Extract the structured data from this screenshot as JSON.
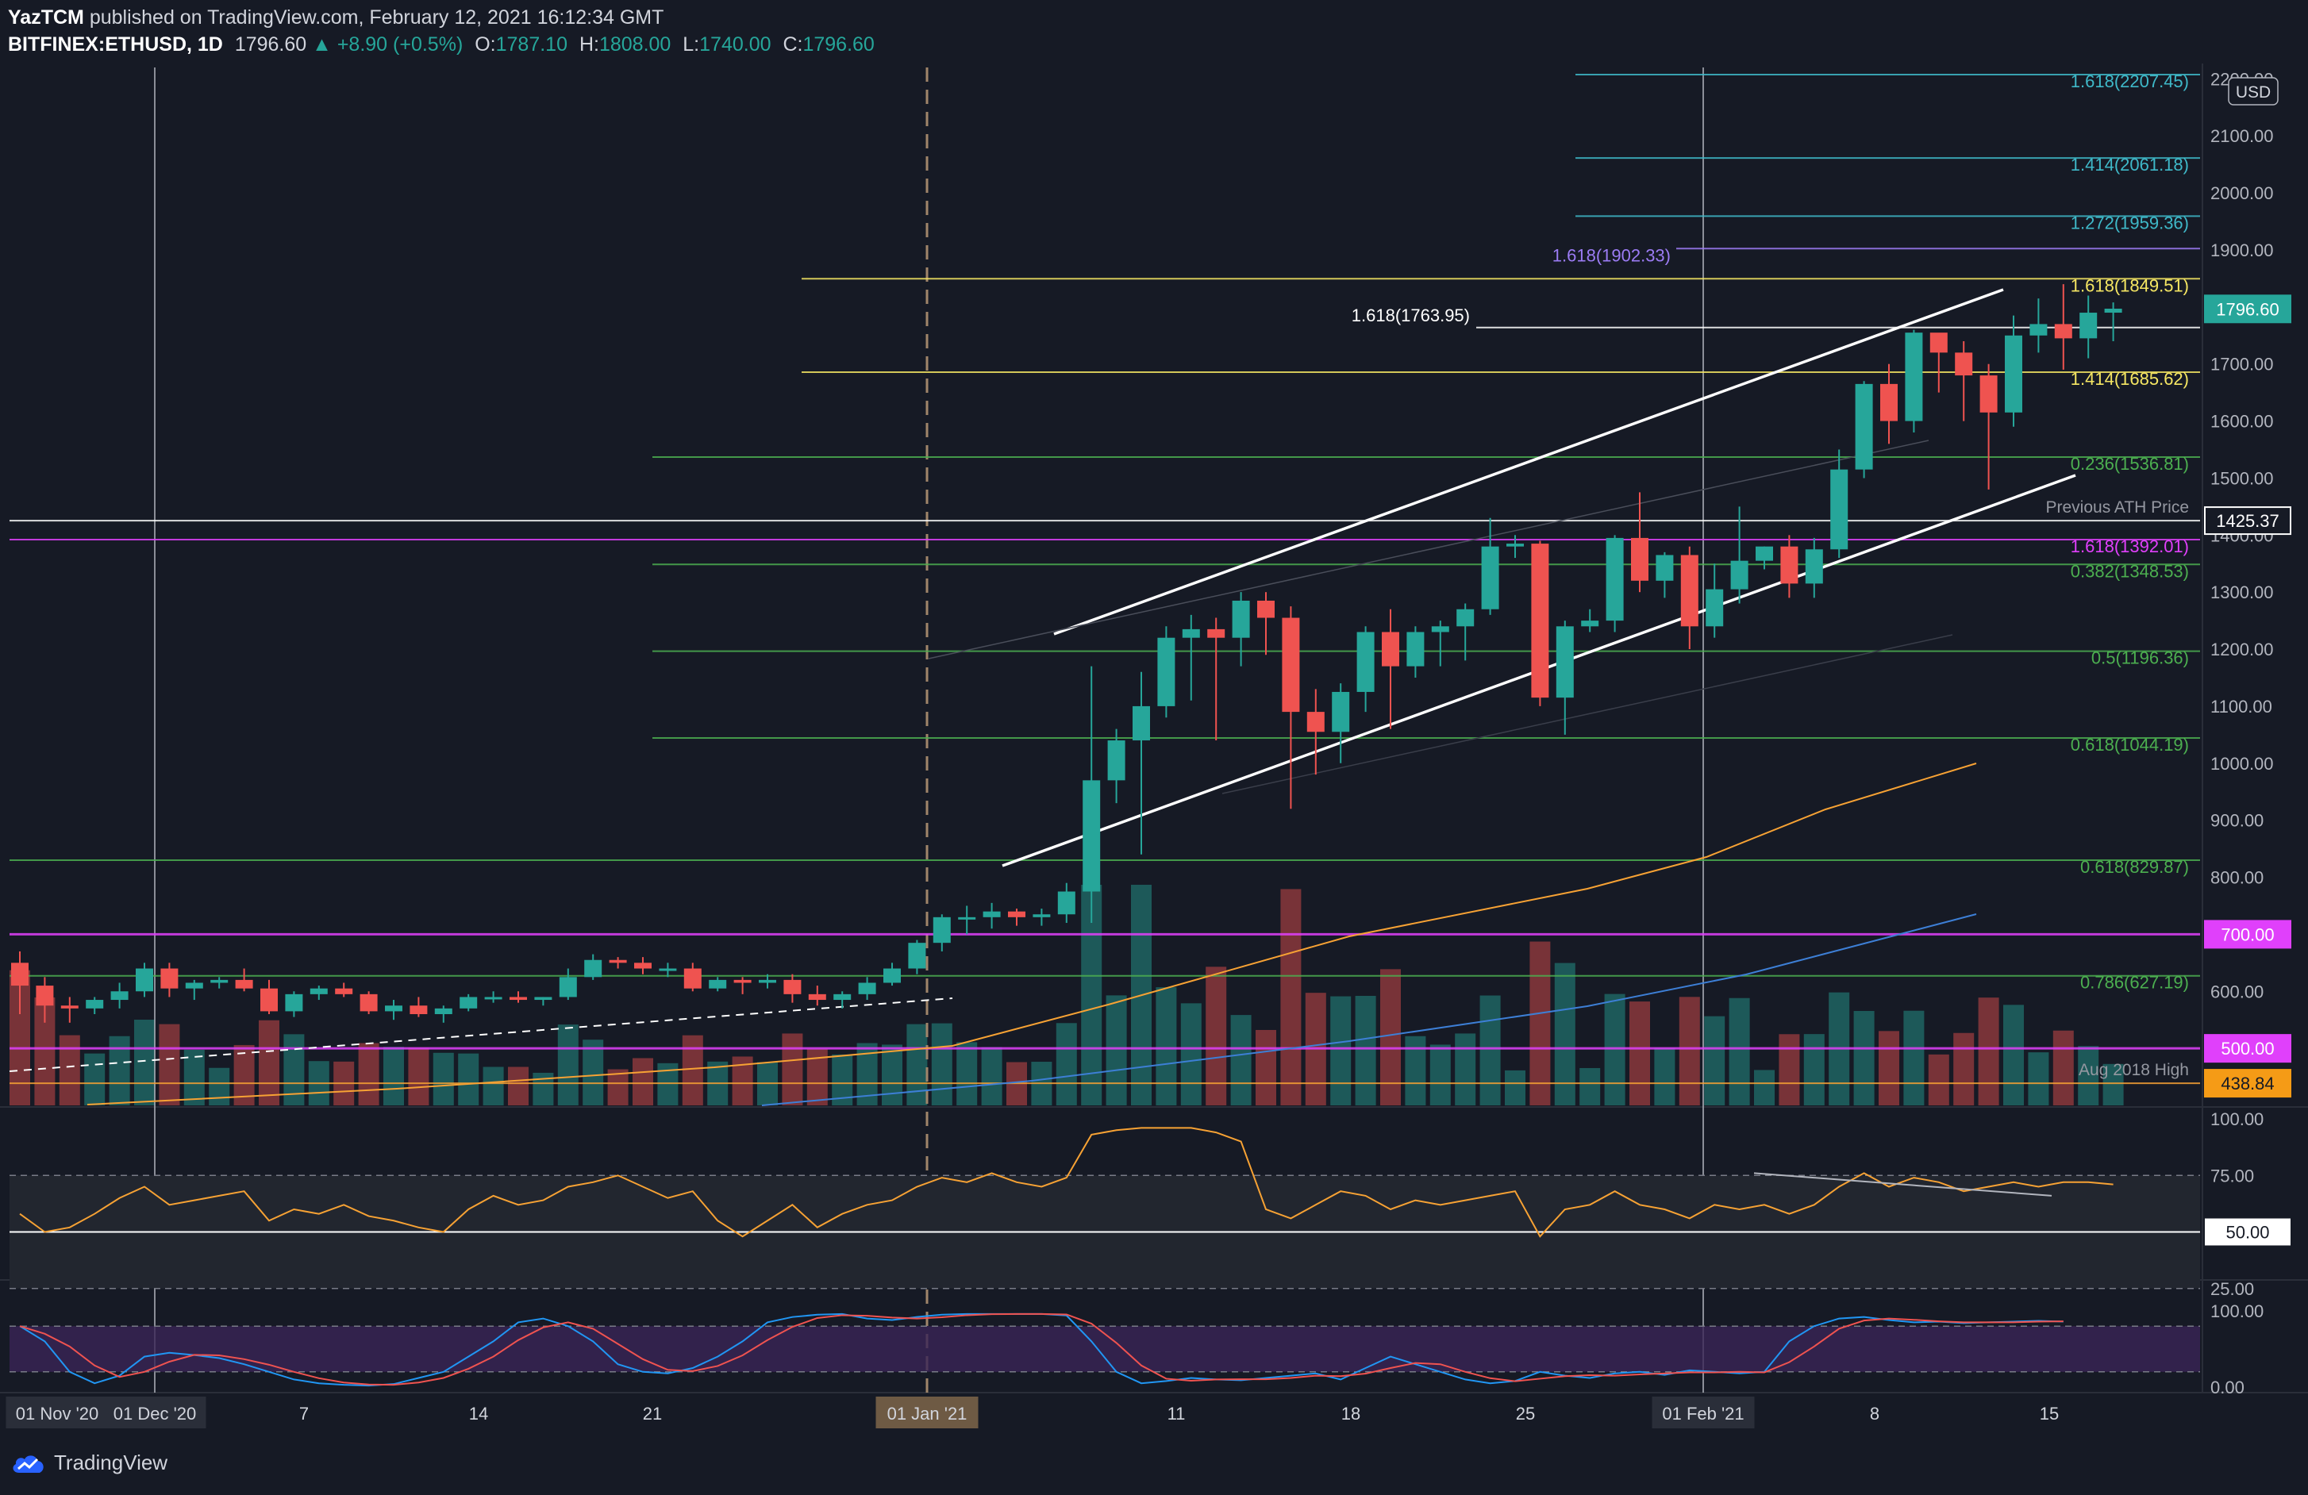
{
  "header": {
    "author": "YazTCM",
    "published": "published on TradingView.com, February 12, 2021 16:12:34 GMT",
    "symbol": "BITFINEX:ETHUSD, 1D",
    "last": "1796.60",
    "change": "▲ +8.90 (+0.5%)",
    "open_label": "O:",
    "open": "1787.10",
    "high_label": "H:",
    "high": "1808.00",
    "low_label": "L:",
    "low": "1740.00",
    "close_label": "C:",
    "close": "1796.60"
  },
  "footer": {
    "brand": "TradingView"
  },
  "colors": {
    "background": "#161a25",
    "up": "#26a69a",
    "down": "#ef5350",
    "fib_green": "#4caf50",
    "fib_yellow": "#f5e663",
    "fib_cyan": "#3fb9c9",
    "fib_purple": "#9c7cf5",
    "magenta": "#e040fb",
    "ma_orange": "#f7a234",
    "ma_blue": "#3d7fd6",
    "rsi": "#f7a234",
    "stoch_k": "#2196f3",
    "stoch_d": "#ef5350"
  },
  "chart_data": {
    "type": "candlestick",
    "currency_badge": "USD",
    "y_ticks": [
      "2200.00",
      "2100.00",
      "2000.00",
      "1900.00",
      "1800.00",
      "1700.00",
      "1600.00",
      "1500.00",
      "1400.00",
      "1300.00",
      "1200.00",
      "1100.00",
      "1000.00",
      "900.00",
      "800.00",
      "700.00",
      "600.00",
      "500.00"
    ],
    "y_range": [
      400,
      2220
    ],
    "x_labels": [
      "01 Nov '20",
      "01 Dec '20",
      "7",
      "14",
      "21",
      "01 Jan '21",
      "11",
      "18",
      "25",
      "01 Feb '21",
      "8",
      "15"
    ],
    "price_badges": [
      {
        "text": "1796.60",
        "price": 1796.6,
        "color": "#26a69a",
        "text_color": "#ffffff"
      },
      {
        "text": "1425.37",
        "price": 1425.37,
        "color": "#161a25",
        "text_color": "#ffffff",
        "border": "#ffffff"
      },
      {
        "text": "700.00",
        "price": 700,
        "color": "#e040fb",
        "text_color": "#ffffff"
      },
      {
        "text": "500.00",
        "price": 500,
        "color": "#e040fb",
        "text_color": "#ffffff"
      },
      {
        "text": "438.84",
        "price": 438.84,
        "color": "#f59b16",
        "text_color": "#161a25"
      }
    ],
    "levels": [
      {
        "label": "1.618(2207.45)",
        "price": 2207.45,
        "color": "#3fb9c9"
      },
      {
        "label": "1.414(2061.18)",
        "price": 2061.18,
        "color": "#3fb9c9"
      },
      {
        "label": "1.272(1959.36)",
        "price": 1959.36,
        "color": "#3fb9c9"
      },
      {
        "label": "1.618(1902.33)",
        "price": 1902.33,
        "color": "#9c7cf5"
      },
      {
        "label": "1.618(1849.51)",
        "price": 1849.51,
        "color": "#f5e663"
      },
      {
        "label": "1.618(1763.95)",
        "price": 1763.95,
        "color": "#ffffff"
      },
      {
        "label": "1.414(1685.62)",
        "price": 1685.62,
        "color": "#f5e663"
      },
      {
        "label": "0.236(1536.81)",
        "price": 1536.81,
        "color": "#4caf50"
      },
      {
        "label": "Previous ATH Price",
        "price": 1425.37,
        "color": "#ffffff"
      },
      {
        "label": "1.618(1392.01)",
        "price": 1392.01,
        "color": "#e040fb"
      },
      {
        "label": "0.382(1348.53)",
        "price": 1348.53,
        "color": "#4caf50"
      },
      {
        "label": "0.5(1196.36)",
        "price": 1196.36,
        "color": "#4caf50"
      },
      {
        "label": "0.618(1044.19)",
        "price": 1044.19,
        "color": "#4caf50"
      },
      {
        "label": "0.618(829.87)",
        "price": 829.87,
        "color": "#4caf50"
      },
      {
        "label": "700.00",
        "price": 700,
        "color": "#e040fb"
      },
      {
        "label": "0.786(627.19)",
        "price": 627.19,
        "color": "#4caf50"
      },
      {
        "label": "500.00",
        "price": 500,
        "color": "#e040fb"
      },
      {
        "label": "Aug 2018 High",
        "price": 438.84,
        "color": "#f7a234"
      }
    ],
    "candles": [
      [
        650,
        670,
        560,
        610
      ],
      [
        610,
        625,
        545,
        575
      ],
      [
        575,
        590,
        545,
        570
      ],
      [
        570,
        590,
        560,
        585
      ],
      [
        585,
        615,
        570,
        600
      ],
      [
        600,
        650,
        590,
        640
      ],
      [
        640,
        650,
        590,
        605
      ],
      [
        605,
        620,
        585,
        615
      ],
      [
        615,
        625,
        605,
        620
      ],
      [
        620,
        640,
        600,
        605
      ],
      [
        605,
        620,
        560,
        565
      ],
      [
        565,
        600,
        555,
        595
      ],
      [
        595,
        610,
        585,
        605
      ],
      [
        605,
        615,
        590,
        595
      ],
      [
        595,
        600,
        560,
        565
      ],
      [
        565,
        585,
        550,
        575
      ],
      [
        575,
        590,
        555,
        560
      ],
      [
        560,
        575,
        545,
        570
      ],
      [
        570,
        595,
        565,
        590
      ],
      [
        590,
        600,
        580,
        590
      ],
      [
        590,
        600,
        580,
        585
      ],
      [
        585,
        590,
        575,
        590
      ],
      [
        590,
        640,
        585,
        625
      ],
      [
        625,
        665,
        620,
        655
      ],
      [
        655,
        660,
        640,
        650
      ],
      [
        650,
        660,
        630,
        640
      ],
      [
        640,
        650,
        625,
        640
      ],
      [
        640,
        650,
        600,
        605
      ],
      [
        605,
        625,
        600,
        620
      ],
      [
        620,
        625,
        595,
        615
      ],
      [
        615,
        630,
        605,
        620
      ],
      [
        620,
        630,
        580,
        595
      ],
      [
        595,
        610,
        575,
        585
      ],
      [
        585,
        600,
        570,
        595
      ],
      [
        595,
        625,
        585,
        615
      ],
      [
        615,
        650,
        610,
        640
      ],
      [
        640,
        690,
        630,
        685
      ],
      [
        685,
        735,
        670,
        730
      ],
      [
        730,
        750,
        700,
        730
      ],
      [
        730,
        755,
        710,
        740
      ],
      [
        740,
        745,
        715,
        730
      ],
      [
        730,
        745,
        715,
        735
      ],
      [
        735,
        790,
        720,
        775
      ],
      [
        775,
        1170,
        720,
        970
      ],
      [
        970,
        1060,
        930,
        1040
      ],
      [
        1040,
        1160,
        840,
        1100
      ],
      [
        1100,
        1240,
        1080,
        1220
      ],
      [
        1220,
        1260,
        1110,
        1235
      ],
      [
        1235,
        1255,
        1040,
        1220
      ],
      [
        1220,
        1300,
        1170,
        1285
      ],
      [
        1285,
        1300,
        1190,
        1255
      ],
      [
        1255,
        1275,
        920,
        1090
      ],
      [
        1090,
        1130,
        980,
        1055
      ],
      [
        1055,
        1140,
        1000,
        1125
      ],
      [
        1125,
        1240,
        1090,
        1230
      ],
      [
        1230,
        1270,
        1060,
        1170
      ],
      [
        1170,
        1240,
        1150,
        1230
      ],
      [
        1230,
        1250,
        1170,
        1240
      ],
      [
        1240,
        1280,
        1180,
        1270
      ],
      [
        1270,
        1430,
        1260,
        1380
      ],
      [
        1380,
        1400,
        1360,
        1385
      ],
      [
        1385,
        1390,
        1100,
        1115
      ],
      [
        1115,
        1250,
        1050,
        1240
      ],
      [
        1240,
        1270,
        1230,
        1250
      ],
      [
        1250,
        1400,
        1230,
        1395
      ],
      [
        1395,
        1475,
        1300,
        1320
      ],
      [
        1320,
        1370,
        1290,
        1365
      ],
      [
        1365,
        1380,
        1200,
        1240
      ],
      [
        1240,
        1350,
        1220,
        1305
      ],
      [
        1305,
        1450,
        1280,
        1355
      ],
      [
        1355,
        1380,
        1340,
        1380
      ],
      [
        1380,
        1400,
        1290,
        1315
      ],
      [
        1315,
        1395,
        1290,
        1375
      ],
      [
        1375,
        1550,
        1360,
        1515
      ],
      [
        1515,
        1670,
        1500,
        1665
      ],
      [
        1665,
        1700,
        1560,
        1600
      ],
      [
        1600,
        1760,
        1580,
        1755
      ],
      [
        1755,
        1740,
        1650,
        1720
      ],
      [
        1720,
        1740,
        1600,
        1680
      ],
      [
        1680,
        1700,
        1480,
        1615
      ],
      [
        1615,
        1785,
        1590,
        1750
      ],
      [
        1750,
        1815,
        1720,
        1770
      ],
      [
        1770,
        1840,
        1690,
        1745
      ],
      [
        1745,
        1820,
        1710,
        1790
      ],
      [
        1790,
        1808,
        1740,
        1797
      ]
    ],
    "rsi_ticks": [
      "100.00",
      "75.00",
      "50.00",
      "25.00"
    ],
    "stoch_ticks": [
      "100.00",
      "0.00"
    ],
    "rsi_badge": "50.00"
  }
}
